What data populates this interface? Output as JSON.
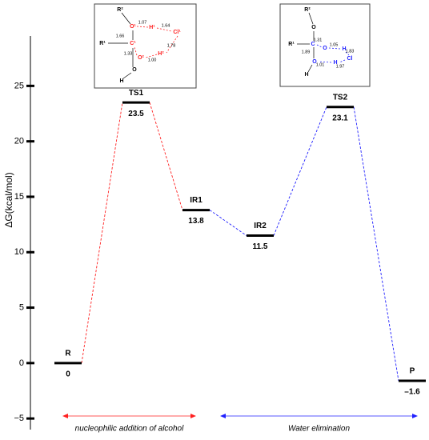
{
  "chart_data": {
    "type": "energy_profile",
    "y_label": "ΔG(kcal/mol)",
    "categories": [
      "R",
      "TS1",
      "IR1",
      "IR2",
      "TS2",
      "P"
    ],
    "values": [
      0,
      23.5,
      13.8,
      11.5,
      23.1,
      -1.6
    ],
    "value_labels": [
      "0",
      "23.5",
      "13.8",
      "11.5",
      "23.1",
      "–1.6"
    ],
    "connector_colors": [
      "#ff2020",
      "#ff2020",
      "#2020ff",
      "#2020ff",
      "#2020ff"
    ],
    "ylim": [
      -6,
      29.5
    ],
    "yticks": [
      {
        "value": -5,
        "label": "−5"
      },
      0,
      5,
      10,
      15,
      20,
      25
    ],
    "annotations": [
      {
        "text": "nucleophilic addition of alcohol",
        "color": "#ff2020"
      },
      {
        "text": "Water elimination",
        "color": "#2020ff"
      }
    ],
    "insets": [
      {
        "labels": [
          "R²",
          "O¹",
          "H¹",
          "Cl¹",
          "R¹",
          "C¹",
          "O²",
          "H²",
          "O",
          "H",
          "1.07",
          "1.64",
          "1.66",
          "1.33",
          "1.00",
          "1.78"
        ]
      },
      {
        "labels": [
          "R²",
          "O",
          "R¹",
          "C",
          "O",
          "H",
          "O",
          "H",
          "Cl",
          "H",
          "1.31",
          "1.05",
          "1.89",
          "1.83",
          "1.01",
          "1.97"
        ]
      }
    ]
  }
}
